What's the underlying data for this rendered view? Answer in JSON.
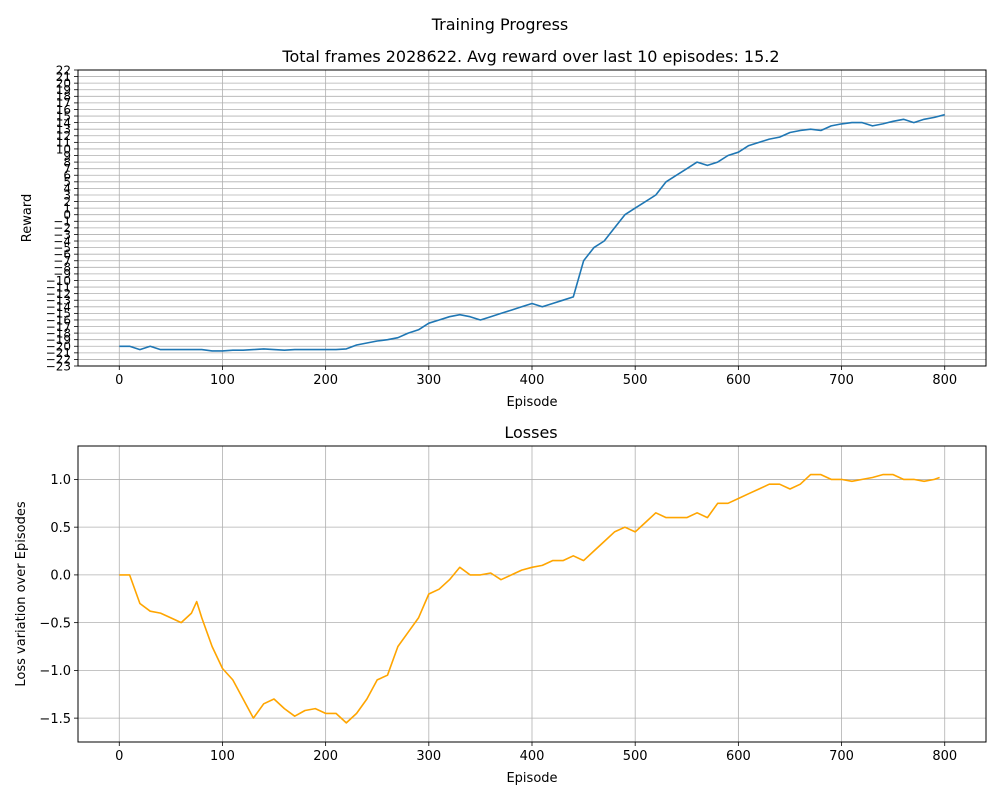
{
  "figure": {
    "suptitle": "Training Progress"
  },
  "chart_data": [
    {
      "type": "line",
      "title": "Total frames 2028622. Avg reward over last 10 episodes: 15.2",
      "xlabel": "Episode",
      "ylabel": "Reward",
      "xlim": [
        -40,
        840
      ],
      "ylim": [
        -23,
        22
      ],
      "x_ticks": [
        0,
        100,
        200,
        300,
        400,
        500,
        600,
        700,
        800
      ],
      "y_ticks": [
        -23,
        -22,
        -21,
        -20,
        -19,
        -18,
        -17,
        -16,
        -15,
        -14,
        -13,
        -12,
        -11,
        -10,
        -9,
        -8,
        -7,
        -6,
        -5,
        -4,
        -3,
        -2,
        -1,
        0,
        1,
        2,
        3,
        4,
        5,
        6,
        7,
        8,
        9,
        10,
        11,
        12,
        13,
        14,
        15,
        16,
        17,
        18,
        19,
        20,
        21,
        22
      ],
      "grid": true,
      "color": "#1f77b4",
      "series": [
        {
          "x": [
            0,
            10,
            20,
            30,
            40,
            50,
            60,
            70,
            80,
            90,
            100,
            110,
            120,
            130,
            140,
            150,
            160,
            170,
            180,
            190,
            200,
            210,
            220,
            230,
            240,
            250,
            260,
            270,
            280,
            290,
            300,
            310,
            320,
            330,
            340,
            350,
            360,
            370,
            380,
            390,
            400,
            410,
            420,
            430,
            440,
            450,
            460,
            470,
            480,
            490,
            500,
            510,
            520,
            530,
            540,
            550,
            560,
            570,
            580,
            590,
            600,
            610,
            620,
            630,
            640,
            650,
            660,
            670,
            680,
            690,
            700,
            710,
            720,
            730,
            740,
            750,
            760,
            770,
            780,
            790,
            800
          ],
          "values": [
            -20,
            -20,
            -20.5,
            -20,
            -20.5,
            -20.5,
            -20.5,
            -20.5,
            -20.5,
            -20.7,
            -20.7,
            -20.6,
            -20.6,
            -20.5,
            -20.4,
            -20.5,
            -20.6,
            -20.5,
            -20.5,
            -20.5,
            -20.5,
            -20.5,
            -20.4,
            -19.8,
            -19.5,
            -19.2,
            -19,
            -18.7,
            -18,
            -17.5,
            -16.5,
            -16,
            -15.5,
            -15.2,
            -15.5,
            -16,
            -15.5,
            -15,
            -14.5,
            -14,
            -13.5,
            -14,
            -13.5,
            -13,
            -12.5,
            -7,
            -5,
            -4,
            -2,
            0,
            1,
            2,
            3,
            5,
            6,
            7,
            8,
            7.5,
            8,
            9,
            9.5,
            10.5,
            11,
            11.5,
            11.8,
            12.5,
            12.8,
            13,
            12.8,
            13.5,
            13.8,
            14,
            14,
            13.5,
            13.8,
            14.2,
            14.5,
            14,
            14.5,
            14.8,
            15.2
          ]
        }
      ]
    },
    {
      "type": "line",
      "title": "Losses",
      "xlabel": "Episode",
      "ylabel": "Loss variation over Episodes",
      "xlim": [
        -40,
        840
      ],
      "ylim": [
        -1.75,
        1.35
      ],
      "x_ticks": [
        0,
        100,
        200,
        300,
        400,
        500,
        600,
        700,
        800
      ],
      "y_ticks": [
        -1.5,
        -1.0,
        -0.5,
        0.0,
        0.5,
        1.0
      ],
      "y_tick_labels": [
        "−1.5",
        "−1.0",
        "−0.5",
        "0.0",
        "0.5",
        "1.0"
      ],
      "grid": true,
      "color": "#ffa500",
      "series": [
        {
          "x": [
            0,
            10,
            20,
            30,
            40,
            50,
            60,
            70,
            75,
            80,
            90,
            100,
            110,
            120,
            130,
            140,
            150,
            160,
            170,
            180,
            190,
            200,
            210,
            220,
            230,
            240,
            250,
            260,
            270,
            280,
            290,
            300,
            310,
            320,
            330,
            340,
            350,
            360,
            370,
            380,
            390,
            400,
            410,
            420,
            430,
            440,
            450,
            460,
            470,
            480,
            490,
            500,
            510,
            520,
            530,
            540,
            550,
            560,
            570,
            580,
            590,
            600,
            610,
            620,
            630,
            640,
            650,
            660,
            670,
            680,
            690,
            700,
            710,
            720,
            730,
            740,
            750,
            760,
            770,
            780,
            790,
            795
          ],
          "values": [
            0,
            0,
            -0.3,
            -0.38,
            -0.4,
            -0.45,
            -0.5,
            -0.4,
            -0.28,
            -0.45,
            -0.75,
            -0.98,
            -1.1,
            -1.3,
            -1.5,
            -1.35,
            -1.3,
            -1.4,
            -1.48,
            -1.42,
            -1.4,
            -1.45,
            -1.45,
            -1.55,
            -1.45,
            -1.3,
            -1.1,
            -1.05,
            -0.75,
            -0.6,
            -0.45,
            -0.2,
            -0.15,
            -0.05,
            0.08,
            0.0,
            0.0,
            0.02,
            -0.05,
            0.0,
            0.05,
            0.08,
            0.1,
            0.15,
            0.15,
            0.2,
            0.15,
            0.25,
            0.35,
            0.45,
            0.5,
            0.45,
            0.55,
            0.65,
            0.6,
            0.6,
            0.6,
            0.65,
            0.6,
            0.75,
            0.75,
            0.8,
            0.85,
            0.9,
            0.95,
            0.95,
            0.9,
            0.95,
            1.05,
            1.05,
            1.0,
            1.0,
            0.98,
            1.0,
            1.02,
            1.05,
            1.05,
            1.0,
            1.0,
            0.98,
            1.0,
            1.02
          ]
        }
      ]
    }
  ]
}
